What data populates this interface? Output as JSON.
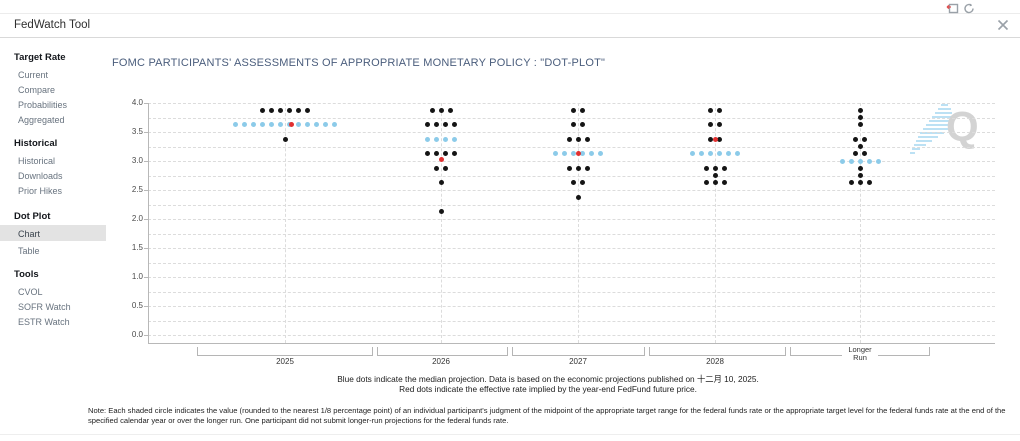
{
  "topbar": {
    "icons": [
      "popout-icon",
      "refresh-icon"
    ]
  },
  "header": {
    "title": "FedWatch Tool",
    "close_icon": "close-icon"
  },
  "sidebar": {
    "sections": [
      {
        "title": "Target Rate",
        "items": [
          {
            "label": "Current"
          },
          {
            "label": "Compare"
          },
          {
            "label": "Probabilities"
          },
          {
            "label": "Aggregated"
          }
        ]
      },
      {
        "title": "Historical",
        "items": [
          {
            "label": "Historical"
          },
          {
            "label": "Downloads"
          },
          {
            "label": "Prior Hikes"
          }
        ]
      },
      {
        "title": "Dot Plot",
        "items": [
          {
            "label": "Chart",
            "selected": true
          },
          {
            "label": "Table"
          }
        ]
      },
      {
        "title": "Tools",
        "items": [
          {
            "label": "CVOL"
          },
          {
            "label": "SOFR Watch"
          },
          {
            "label": "ESTR Watch"
          }
        ]
      }
    ]
  },
  "main": {
    "title": "FOMC PARTICIPANTS' ASSESSMENTS OF APPROPRIATE MONETARY POLICY : \"DOT-PLOT\""
  },
  "chart_data": {
    "type": "scatter",
    "title": "FOMC PARTICIPANTS' ASSESSMENTS OF APPROPRIATE MONETARY POLICY : \"DOT-PLOT\"",
    "ylim": [
      0.0,
      4.0
    ],
    "ytick_step": 0.5,
    "grid_step": 0.25,
    "grid": true,
    "categories": [
      "2025",
      "2026",
      "2027",
      "2028",
      "Longer Run"
    ],
    "dot_colors": {
      "participant": "#151515",
      "median": "#8ccbe9",
      "effective": "#e13030"
    },
    "columns": [
      {
        "label": "2025",
        "participant_dots": [
          {
            "rate": 3.875,
            "count": 6
          },
          {
            "rate": 3.375,
            "count": 1
          }
        ],
        "median": {
          "rate": 3.625,
          "count": 12
        },
        "effective_rate": 3.625
      },
      {
        "label": "2026",
        "participant_dots": [
          {
            "rate": 3.875,
            "count": 3
          },
          {
            "rate": 3.625,
            "count": 4
          },
          {
            "rate": 3.125,
            "count": 4
          },
          {
            "rate": 2.875,
            "count": 2
          },
          {
            "rate": 2.625,
            "count": 1
          },
          {
            "rate": 2.125,
            "count": 1
          }
        ],
        "median": {
          "rate": 3.375,
          "count": 4
        },
        "effective_rate": 3.03
      },
      {
        "label": "2027",
        "participant_dots": [
          {
            "rate": 3.875,
            "count": 2
          },
          {
            "rate": 3.625,
            "count": 2
          },
          {
            "rate": 3.375,
            "count": 3
          },
          {
            "rate": 2.875,
            "count": 3
          },
          {
            "rate": 2.625,
            "count": 2
          },
          {
            "rate": 2.375,
            "count": 1
          }
        ],
        "median": {
          "rate": 3.125,
          "count": 6
        },
        "effective_rate": 3.125
      },
      {
        "label": "2028",
        "participant_dots": [
          {
            "rate": 3.875,
            "count": 2
          },
          {
            "rate": 3.625,
            "count": 2
          },
          {
            "rate": 3.375,
            "count": 2
          },
          {
            "rate": 2.875,
            "count": 3
          },
          {
            "rate": 2.75,
            "count": 1
          },
          {
            "rate": 2.625,
            "count": 3
          }
        ],
        "median": {
          "rate": 3.125,
          "count": 6
        },
        "effective_rate": 3.375
      },
      {
        "label": "Longer Run",
        "participant_dots": [
          {
            "rate": 3.875,
            "count": 1
          },
          {
            "rate": 3.75,
            "count": 1
          },
          {
            "rate": 3.625,
            "count": 1
          },
          {
            "rate": 3.375,
            "count": 2
          },
          {
            "rate": 3.25,
            "count": 1
          },
          {
            "rate": 3.125,
            "count": 2
          },
          {
            "rate": 2.875,
            "count": 1
          },
          {
            "rate": 2.75,
            "count": 1
          },
          {
            "rate": 2.625,
            "count": 3
          }
        ],
        "median": {
          "rate": 3.0,
          "count": 5
        },
        "effective_rate": null
      }
    ],
    "legend_line1": "Blue dots indicate the median projection. Data is based on the economic projections published on 十二月 10, 2025.",
    "legend_line2": "Red dots indicate the effective rate implied by the year-end FedFund future price."
  },
  "note": "Note: Each shaded circle indicates the value (rounded to the nearest 1/8 percentage point) of an individual participant's judgment of the midpoint of the appropriate target range for the federal funds rate or the appropriate target level for the federal funds rate at the end of the specified calendar year or over the longer run. One participant did not submit longer-run projections for the federal funds rate.",
  "watermark": {
    "letter": "Q"
  }
}
